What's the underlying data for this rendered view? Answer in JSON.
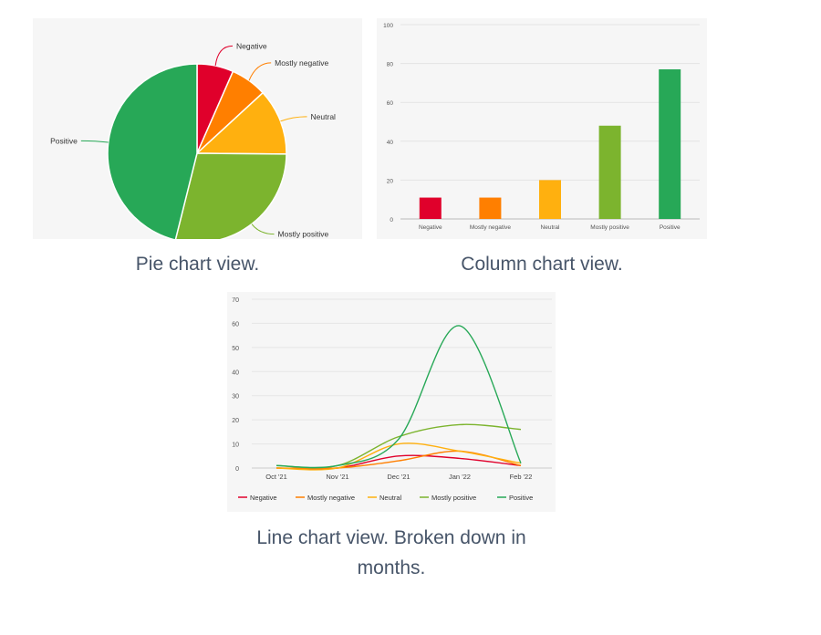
{
  "colors": {
    "negative": "#e0002b",
    "mostly_negative": "#ff7f00",
    "neutral": "#ffb00f",
    "mostly_positive": "#7cb42e",
    "positive": "#27a857"
  },
  "captions": {
    "pie": "Pie chart view.",
    "column": "Column chart view.",
    "line_1": "Line chart view. Broken down in",
    "line_2": "months."
  },
  "chart_data": [
    {
      "type": "pie",
      "labels": [
        "Negative",
        "Mostly negative",
        "Neutral",
        "Mostly positive",
        "Positive"
      ],
      "values": [
        11,
        11,
        20,
        48,
        77
      ]
    },
    {
      "type": "bar",
      "categories": [
        "Negative",
        "Mostly negative",
        "Neutral",
        "Mostly positive",
        "Positive"
      ],
      "values": [
        11,
        11,
        20,
        48,
        77
      ],
      "ylim": [
        0,
        100
      ],
      "yticks": [
        0,
        20,
        40,
        60,
        80,
        100
      ],
      "grid": true
    },
    {
      "type": "line",
      "x": [
        "Oct '21",
        "Nov '21",
        "Dec '21",
        "Jan '22",
        "Feb '22"
      ],
      "ylim": [
        0,
        70
      ],
      "yticks": [
        0,
        10,
        20,
        30,
        40,
        50,
        60,
        70
      ],
      "grid": true,
      "legend": "bottom",
      "series": [
        {
          "name": "Negative",
          "values": [
            0,
            0,
            5,
            4,
            1
          ]
        },
        {
          "name": "Mostly negative",
          "values": [
            0,
            0,
            3,
            7,
            1
          ]
        },
        {
          "name": "Neutral",
          "values": [
            0,
            0,
            10,
            7,
            2
          ]
        },
        {
          "name": "Mostly positive",
          "values": [
            1,
            1,
            13,
            18,
            16
          ]
        },
        {
          "name": "Positive",
          "values": [
            1,
            1,
            12,
            59,
            2
          ]
        }
      ]
    }
  ]
}
